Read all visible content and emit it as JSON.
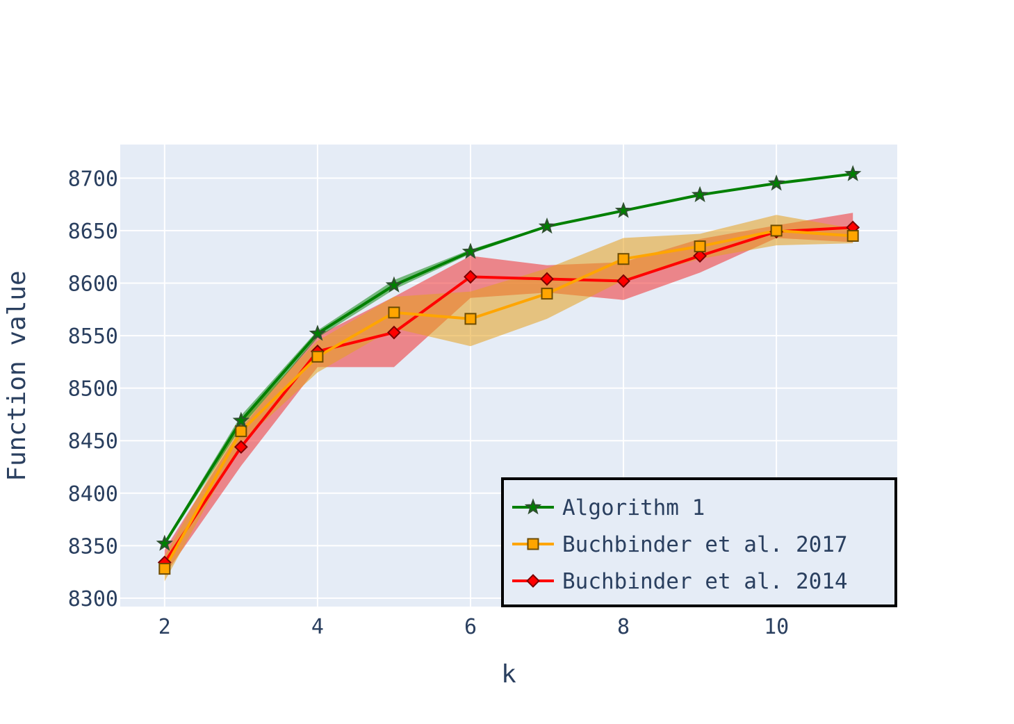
{
  "chart_data": {
    "type": "line",
    "xlabel": "k",
    "ylabel": "Function value",
    "x": [
      2,
      3,
      4,
      5,
      6,
      7,
      8,
      9,
      10,
      11
    ],
    "xlim": [
      1.42,
      11.58
    ],
    "ylim": [
      8292,
      8732
    ],
    "xticks": [
      2,
      4,
      6,
      8,
      10
    ],
    "yticks": [
      8300,
      8350,
      8400,
      8450,
      8500,
      8550,
      8600,
      8650,
      8700
    ],
    "grid": true,
    "legend_position": "bottom-right",
    "series": [
      {
        "name": "Algorithm 1",
        "color": "#008000",
        "band_color": "rgba(0,128,0,0.5)",
        "marker": "star",
        "values": [
          8352,
          8469,
          8552,
          8598,
          8630,
          8654,
          8669,
          8684,
          8695,
          8704
        ],
        "upper": [
          8354,
          8474,
          8555,
          8603,
          8632,
          8655,
          8670,
          8685,
          8696,
          8705
        ],
        "lower": [
          8350,
          8463,
          8548,
          8594,
          8628,
          8653,
          8668,
          8683,
          8694,
          8703
        ]
      },
      {
        "name": "Buchbinder et al. 2017",
        "color": "#FFA500",
        "band_color": "rgba(230,160,30,0.55)",
        "marker": "square",
        "values": [
          8328,
          8459,
          8530,
          8572,
          8566,
          8590,
          8623,
          8635,
          8650,
          8645
        ],
        "upper": [
          8340,
          8470,
          8545,
          8587,
          8592,
          8614,
          8643,
          8647,
          8665,
          8652
        ],
        "lower": [
          8316,
          8448,
          8515,
          8557,
          8540,
          8566,
          8603,
          8623,
          8636,
          8638
        ]
      },
      {
        "name": "Buchbinder et al. 2014",
        "color": "#FF0000",
        "band_color": "rgba(240,50,50,0.55)",
        "marker": "diamond",
        "values": [
          8334,
          8444,
          8535,
          8553,
          8606,
          8604,
          8602,
          8626,
          8649,
          8653
        ],
        "upper": [
          8346,
          8462,
          8550,
          8587,
          8626,
          8617,
          8620,
          8642,
          8655,
          8667
        ],
        "lower": [
          8322,
          8426,
          8520,
          8520,
          8586,
          8591,
          8584,
          8610,
          8643,
          8639
        ]
      }
    ]
  }
}
